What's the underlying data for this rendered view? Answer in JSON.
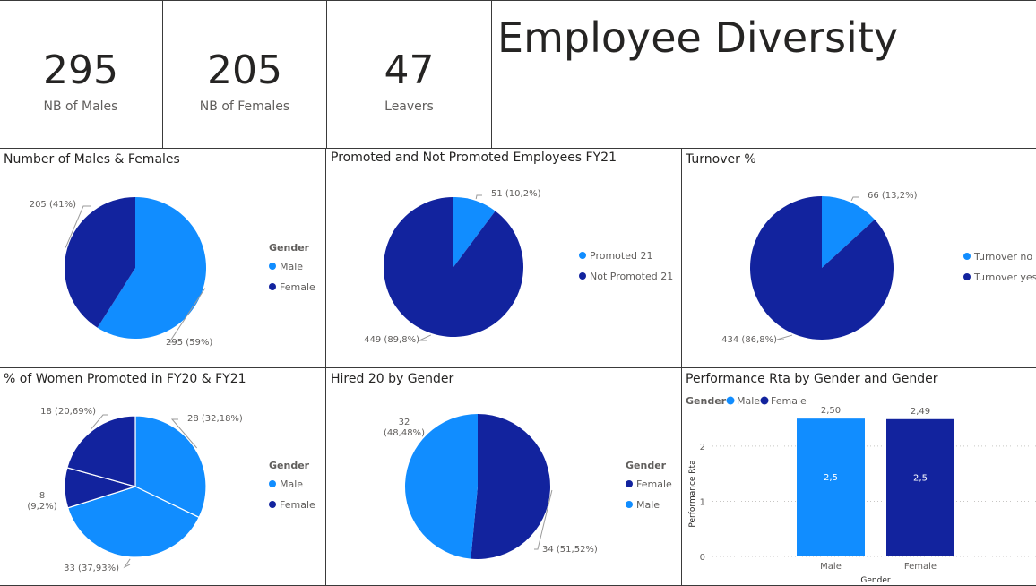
{
  "kpis": [
    {
      "value": "295",
      "label": "NB of Males"
    },
    {
      "value": "205",
      "label": "NB of Females"
    },
    {
      "value": "47",
      "label": "Leavers"
    }
  ],
  "page_title": "Employee Diversity",
  "colors": {
    "light": "#118dff",
    "dark": "#12239e"
  },
  "chart_data": [
    {
      "type": "pie",
      "title": "Number of Males & Females",
      "legend_title": "Gender",
      "slices": [
        {
          "name": "Male",
          "value": 295,
          "label": "295 (59%)"
        },
        {
          "name": "Female",
          "value": 205,
          "label": "205 (41%)"
        }
      ],
      "legend": [
        "Male",
        "Female"
      ]
    },
    {
      "type": "pie",
      "title": "Promoted and Not Promoted Employees FY21",
      "slices": [
        {
          "name": "Promoted 21",
          "value": 51,
          "label": "51 (10,2%)"
        },
        {
          "name": "Not Promoted 21",
          "value": 449,
          "label": "449 (89,8%)"
        }
      ],
      "legend": [
        "Promoted 21",
        "Not Promoted 21"
      ]
    },
    {
      "type": "pie",
      "title": "Turnover %",
      "slices": [
        {
          "name": "Turnover no",
          "value": 66,
          "label": "66 (13,2%)"
        },
        {
          "name": "Turnover yes",
          "value": 434,
          "label": "434 (86,8%)"
        }
      ],
      "legend": [
        "Turnover no",
        "Turnover yes"
      ]
    },
    {
      "type": "pie",
      "title": "% of Women Promoted in FY20 & FY21",
      "legend_title": "Gender",
      "slices": [
        {
          "name": "Male",
          "value": 28,
          "label": "28 (32,18%)"
        },
        {
          "name": "Male",
          "value": 33,
          "label": "33 (37,93%)"
        },
        {
          "name": "Female",
          "value": 8,
          "label_lines": [
            "8",
            "(9,2%)"
          ]
        },
        {
          "name": "Female",
          "value": 18,
          "label": "18 (20,69%)"
        }
      ],
      "legend": [
        "Male",
        "Female"
      ]
    },
    {
      "type": "pie",
      "title": "Hired 20 by Gender",
      "legend_title": "Gender",
      "slices": [
        {
          "name": "Female",
          "value": 34,
          "label": "34 (51,52%)"
        },
        {
          "name": "Male",
          "value": 32,
          "label_lines": [
            "32",
            "(48,48%)"
          ]
        }
      ],
      "legend": [
        "Female",
        "Male"
      ]
    },
    {
      "type": "bar",
      "title": "Performance Rta by Gender and Gender",
      "legend_title": "Gender",
      "legend": [
        "Male",
        "Female"
      ],
      "categories": [
        "Male",
        "Female"
      ],
      "values": [
        2.5,
        2.49
      ],
      "value_labels": [
        "2,50",
        "2,49"
      ],
      "inner_labels": [
        "2,5",
        "2,5"
      ],
      "xlabel": "Gender",
      "ylabel": "Performance Rta",
      "yticks": [
        "0",
        "1",
        "2"
      ],
      "ylim": [
        0,
        2.6
      ],
      "grid": true
    }
  ]
}
